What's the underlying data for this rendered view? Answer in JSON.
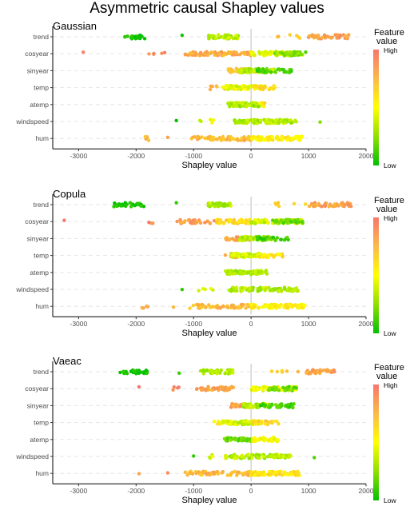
{
  "figure": {
    "title": "Asymmetric causal Shapley values"
  },
  "colors": {
    "high": "#f8766d",
    "mid": "#ffff00",
    "low": "#00c000",
    "zero_line": "#c8c8c8",
    "gridline": "#e6e6e6"
  },
  "chart_data": [
    {
      "type": "scatter",
      "title": "Gaussian",
      "xlabel": "Shapley value",
      "xlim": [
        -3450,
        2000
      ],
      "xticks": [
        -3000,
        -2000,
        -1000,
        0,
        1000,
        2000
      ],
      "features": [
        "trend",
        "cosyear",
        "sinyear",
        "temp",
        "atemp",
        "windspeed",
        "hum"
      ],
      "legend": {
        "title": [
          "Feature",
          "value"
        ],
        "high_label": "High",
        "low_label": "Low",
        "position": "right"
      },
      "series": [
        {
          "feature": "trend",
          "clusters": [
            {
              "x": [
                -2200,
                -1850
              ],
              "f": 0.02,
              "n": 26,
              "s": 1
            },
            {
              "x": [
                -1200,
                -1200
              ],
              "f": 0.05,
              "n": 1,
              "s": 2
            },
            {
              "x": [
                -750,
                -200
              ],
              "f": 0.35,
              "n": 40,
              "s": 3
            },
            {
              "x": [
                -480,
                -400
              ],
              "f": 0.4,
              "n": 12,
              "s": 4
            },
            {
              "x": [
                400,
                900
              ],
              "f": 0.7,
              "n": 6,
              "s": 5
            },
            {
              "x": [
                1000,
                1700
              ],
              "f": 0.85,
              "n": 45,
              "s": 6
            }
          ]
        },
        {
          "feature": "cosyear",
          "clusters": [
            {
              "x": [
                -2920,
                -2920
              ],
              "f": 0.95,
              "n": 1,
              "s": 7
            },
            {
              "x": [
                -1850,
                -1450
              ],
              "f": 0.92,
              "n": 5,
              "s": 8
            },
            {
              "x": [
                -1150,
                0
              ],
              "f": 0.8,
              "n": 90,
              "s": 9
            },
            {
              "x": [
                0,
                900
              ],
              "f": 0.45,
              "n": 70,
              "s": 10
            },
            {
              "x": [
                400,
                900
              ],
              "f": 0.25,
              "n": 40,
              "s": 11
            },
            {
              "x": [
                950,
                950
              ],
              "f": 0.1,
              "n": 1,
              "s": 12
            }
          ]
        },
        {
          "feature": "sinyear",
          "clusters": [
            {
              "x": [
                -400,
                100
              ],
              "f": 0.75,
              "n": 50,
              "s": 13
            },
            {
              "x": [
                -200,
                400
              ],
              "f": 0.35,
              "n": 70,
              "s": 14
            },
            {
              "x": [
                100,
                700
              ],
              "f": 0.15,
              "n": 35,
              "s": 15
            }
          ]
        },
        {
          "feature": "temp",
          "clusters": [
            {
              "x": [
                -750,
                -200
              ],
              "f": 0.75,
              "n": 20,
              "s": 16
            },
            {
              "x": [
                -500,
                200
              ],
              "f": 0.45,
              "n": 80,
              "s": 17
            },
            {
              "x": [
                0,
                450
              ],
              "f": 0.62,
              "n": 20,
              "s": 18
            }
          ]
        },
        {
          "feature": "atemp",
          "clusters": [
            {
              "x": [
                -400,
                150
              ],
              "f": 0.35,
              "n": 90,
              "s": 19
            },
            {
              "x": [
                150,
                250
              ],
              "f": 0.6,
              "n": 6,
              "s": 20
            }
          ]
        },
        {
          "feature": "windspeed",
          "clusters": [
            {
              "x": [
                -1300,
                -1300
              ],
              "f": 0.03,
              "n": 1,
              "s": 21
            },
            {
              "x": [
                -900,
                -600
              ],
              "f": 0.45,
              "n": 5,
              "s": 22
            },
            {
              "x": [
                -300,
                800
              ],
              "f": 0.35,
              "n": 110,
              "s": 23
            },
            {
              "x": [
                1200,
                1200
              ],
              "f": 0.2,
              "n": 1,
              "s": 24
            }
          ]
        },
        {
          "feature": "hum",
          "clusters": [
            {
              "x": [
                -1900,
                -1750
              ],
              "f": 0.8,
              "n": 4,
              "s": 25
            },
            {
              "x": [
                -1450,
                -1450
              ],
              "f": 0.85,
              "n": 1,
              "s": 26
            },
            {
              "x": [
                -1050,
                0
              ],
              "f": 0.75,
              "n": 60,
              "s": 27
            },
            {
              "x": [
                0,
                900
              ],
              "f": 0.55,
              "n": 80,
              "s": 28
            }
          ]
        }
      ]
    },
    {
      "type": "scatter",
      "title": "Copula",
      "xlabel": "Shapley value",
      "xlim": [
        -3450,
        2000
      ],
      "xticks": [
        -3000,
        -2000,
        -1000,
        0,
        1000,
        2000
      ],
      "features": [
        "trend",
        "cosyear",
        "sinyear",
        "temp",
        "atemp",
        "windspeed",
        "hum"
      ],
      "legend": {
        "title": [
          "Feature",
          "value"
        ],
        "high_label": "High",
        "low_label": "Low",
        "position": "right"
      },
      "series": [
        {
          "feature": "trend",
          "clusters": [
            {
              "x": [
                -2400,
                -1850
              ],
              "f": 0.03,
              "n": 28,
              "s": 31
            },
            {
              "x": [
                -1300,
                -1300
              ],
              "f": 0.1,
              "n": 1,
              "s": 32
            },
            {
              "x": [
                -750,
                -350
              ],
              "f": 0.35,
              "n": 45,
              "s": 33
            },
            {
              "x": [
                400,
                950
              ],
              "f": 0.7,
              "n": 6,
              "s": 34
            },
            {
              "x": [
                1000,
                1750
              ],
              "f": 0.85,
              "n": 45,
              "s": 35
            }
          ]
        },
        {
          "feature": "cosyear",
          "clusters": [
            {
              "x": [
                -3250,
                -3250
              ],
              "f": 0.95,
              "n": 1,
              "s": 36
            },
            {
              "x": [
                -2000,
                -1650
              ],
              "f": 0.92,
              "n": 4,
              "s": 37
            },
            {
              "x": [
                -1300,
                -600
              ],
              "f": 0.85,
              "n": 30,
              "s": 38
            },
            {
              "x": [
                -600,
                0
              ],
              "f": 0.65,
              "n": 50,
              "s": 39
            },
            {
              "x": [
                0,
                900
              ],
              "f": 0.4,
              "n": 70,
              "s": 40
            },
            {
              "x": [
                300,
                900
              ],
              "f": 0.2,
              "n": 30,
              "s": 41
            }
          ]
        },
        {
          "feature": "sinyear",
          "clusters": [
            {
              "x": [
                -450,
                0
              ],
              "f": 0.85,
              "n": 35,
              "s": 42
            },
            {
              "x": [
                -200,
                400
              ],
              "f": 0.35,
              "n": 60,
              "s": 43
            },
            {
              "x": [
                100,
                650
              ],
              "f": 0.15,
              "n": 30,
              "s": 44
            }
          ]
        },
        {
          "feature": "temp",
          "clusters": [
            {
              "x": [
                -450,
                -100
              ],
              "f": 0.75,
              "n": 15,
              "s": 45
            },
            {
              "x": [
                -350,
                200
              ],
              "f": 0.4,
              "n": 70,
              "s": 46
            },
            {
              "x": [
                100,
                550
              ],
              "f": 0.6,
              "n": 25,
              "s": 47
            }
          ]
        },
        {
          "feature": "atemp",
          "clusters": [
            {
              "x": [
                -450,
                300
              ],
              "f": 0.35,
              "n": 90,
              "s": 48
            }
          ]
        },
        {
          "feature": "windspeed",
          "clusters": [
            {
              "x": [
                -1200,
                -1200
              ],
              "f": 0.05,
              "n": 1,
              "s": 49
            },
            {
              "x": [
                -950,
                -650
              ],
              "f": 0.45,
              "n": 5,
              "s": 50
            },
            {
              "x": [
                -400,
                850
              ],
              "f": 0.35,
              "n": 110,
              "s": 51
            }
          ]
        },
        {
          "feature": "hum",
          "clusters": [
            {
              "x": [
                -1900,
                -1750
              ],
              "f": 0.8,
              "n": 4,
              "s": 52
            },
            {
              "x": [
                -1350,
                -1350
              ],
              "f": 0.85,
              "n": 1,
              "s": 53
            },
            {
              "x": [
                -1100,
                0
              ],
              "f": 0.75,
              "n": 60,
              "s": 54
            },
            {
              "x": [
                0,
                950
              ],
              "f": 0.55,
              "n": 80,
              "s": 55
            }
          ]
        }
      ]
    },
    {
      "type": "scatter",
      "title": "Vaeac",
      "xlabel": "Shapley value",
      "xlim": [
        -3450,
        2000
      ],
      "xticks": [
        -3000,
        -2000,
        -1000,
        0,
        1000,
        2000
      ],
      "features": [
        "trend",
        "cosyear",
        "sinyear",
        "temp",
        "atemp",
        "windspeed",
        "hum"
      ],
      "legend": {
        "title": [
          "Feature",
          "value"
        ],
        "high_label": "High",
        "low_label": "Low",
        "position": "right"
      },
      "series": [
        {
          "feature": "trend",
          "clusters": [
            {
              "x": [
                -2300,
                -1800
              ],
              "f": 0.03,
              "n": 24,
              "s": 61
            },
            {
              "x": [
                -1250,
                -1250
              ],
              "f": 0.1,
              "n": 1,
              "s": 62
            },
            {
              "x": [
                -900,
                -300
              ],
              "f": 0.35,
              "n": 40,
              "s": 63
            },
            {
              "x": [
                350,
                850
              ],
              "f": 0.7,
              "n": 6,
              "s": 64
            },
            {
              "x": [
                950,
                1450
              ],
              "f": 0.85,
              "n": 40,
              "s": 65
            }
          ]
        },
        {
          "feature": "cosyear",
          "clusters": [
            {
              "x": [
                -1950,
                -1950
              ],
              "f": 0.95,
              "n": 1,
              "s": 66
            },
            {
              "x": [
                -1400,
                -1200
              ],
              "f": 0.92,
              "n": 4,
              "s": 67
            },
            {
              "x": [
                -950,
                -300
              ],
              "f": 0.85,
              "n": 40,
              "s": 68
            },
            {
              "x": [
                0,
                800
              ],
              "f": 0.45,
              "n": 60,
              "s": 69
            },
            {
              "x": [
                300,
                800
              ],
              "f": 0.2,
              "n": 30,
              "s": 70
            }
          ]
        },
        {
          "feature": "sinyear",
          "clusters": [
            {
              "x": [
                -350,
                0
              ],
              "f": 0.85,
              "n": 30,
              "s": 71
            },
            {
              "x": [
                -150,
                350
              ],
              "f": 0.35,
              "n": 60,
              "s": 72
            },
            {
              "x": [
                100,
                800
              ],
              "f": 0.15,
              "n": 35,
              "s": 73
            }
          ]
        },
        {
          "feature": "temp",
          "clusters": [
            {
              "x": [
                -700,
                -150
              ],
              "f": 0.55,
              "n": 15,
              "s": 74
            },
            {
              "x": [
                -500,
                150
              ],
              "f": 0.4,
              "n": 60,
              "s": 75
            },
            {
              "x": [
                0,
                500
              ],
              "f": 0.65,
              "n": 25,
              "s": 76
            }
          ]
        },
        {
          "feature": "atemp",
          "clusters": [
            {
              "x": [
                -500,
                0
              ],
              "f": 0.2,
              "n": 35,
              "s": 77
            },
            {
              "x": [
                0,
                500
              ],
              "f": 0.5,
              "n": 40,
              "s": 78
            }
          ]
        },
        {
          "feature": "windspeed",
          "clusters": [
            {
              "x": [
                -1000,
                -1000
              ],
              "f": 0.05,
              "n": 1,
              "s": 79
            },
            {
              "x": [
                -800,
                -650
              ],
              "f": 0.45,
              "n": 4,
              "s": 80
            },
            {
              "x": [
                -450,
                700
              ],
              "f": 0.35,
              "n": 100,
              "s": 81
            },
            {
              "x": [
                1100,
                1100
              ],
              "f": 0.2,
              "n": 1,
              "s": 82
            }
          ]
        },
        {
          "feature": "hum",
          "clusters": [
            {
              "x": [
                -1950,
                -1950
              ],
              "f": 0.9,
              "n": 1,
              "s": 83
            },
            {
              "x": [
                -1450,
                -1450
              ],
              "f": 0.85,
              "n": 1,
              "s": 84
            },
            {
              "x": [
                -1200,
                0
              ],
              "f": 0.75,
              "n": 60,
              "s": 85
            },
            {
              "x": [
                0,
                850
              ],
              "f": 0.6,
              "n": 80,
              "s": 86
            }
          ]
        }
      ]
    }
  ]
}
